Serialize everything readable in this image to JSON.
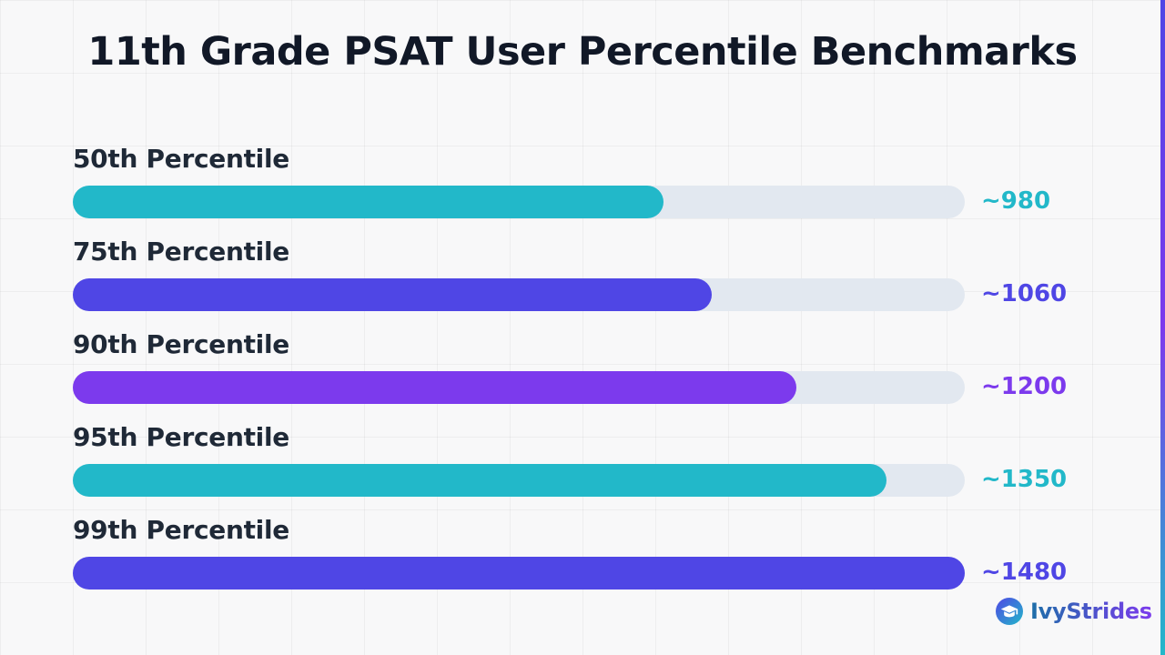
{
  "chart_data": {
    "type": "bar",
    "orientation": "horizontal",
    "title": "11th Grade PSAT User Percentile Benchmarks",
    "categories": [
      "50th Percentile",
      "75th Percentile",
      "90th Percentile",
      "95th Percentile",
      "99th Percentile"
    ],
    "values": [
      980,
      1060,
      1200,
      1350,
      1480
    ],
    "value_labels": [
      "~980",
      "~1060",
      "~1200",
      "~1350",
      "~1480"
    ],
    "colors": [
      "#22b8c9",
      "#4f46e5",
      "#7c3aed",
      "#22b8c9",
      "#4f46e5"
    ],
    "track_color": "#e2e8f0",
    "xlim": [
      0,
      1480
    ],
    "grid": false,
    "legend": "none"
  },
  "brand": {
    "name": "IvyStrides",
    "logo_icon": "graduation-cap-icon"
  }
}
